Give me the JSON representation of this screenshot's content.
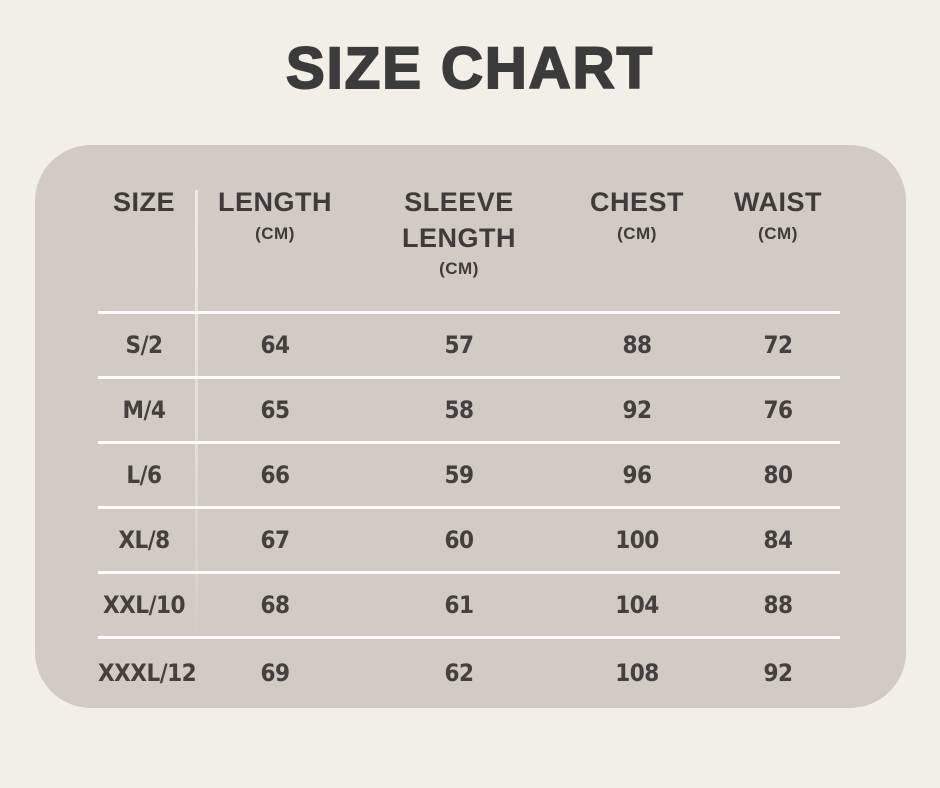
{
  "title": "SIZE CHART",
  "colors": {
    "page_background": "#F2EFE9",
    "card_background": "#D2CBC3",
    "title_text": "#3B3B3B",
    "table_text": "#3E3B39",
    "divider_lines": "#FDFCFA"
  },
  "table": {
    "headers": [
      {
        "label": "SIZE",
        "unit": ""
      },
      {
        "label": "LENGTH",
        "unit": "(CM)"
      },
      {
        "label": "SLEEVE LENGTH",
        "unit": "(CM)"
      },
      {
        "label": "CHEST",
        "unit": "(CM)"
      },
      {
        "label": "WAIST",
        "unit": "(CM)"
      }
    ],
    "rows": [
      {
        "cells": [
          "S/2",
          "64",
          "57",
          "88",
          "72"
        ]
      },
      {
        "cells": [
          "M/4",
          "65",
          "58",
          "92",
          "76"
        ]
      },
      {
        "cells": [
          "L/6",
          "66",
          "59",
          "96",
          "80"
        ]
      },
      {
        "cells": [
          "XL/8",
          "67",
          "60",
          "100",
          "84"
        ]
      },
      {
        "cells": [
          "XXL/10",
          "68",
          "61",
          "104",
          "88"
        ]
      },
      {
        "cells": [
          "XXXL/12",
          "69",
          "62",
          "108",
          "92"
        ]
      }
    ]
  },
  "chart_data": {
    "type": "table",
    "title": "SIZE CHART",
    "columns": [
      "SIZE",
      "LENGTH (CM)",
      "SLEEVE LENGTH (CM)",
      "CHEST (CM)",
      "WAIST (CM)"
    ],
    "rows": [
      [
        "S/2",
        64,
        57,
        88,
        72
      ],
      [
        "M/4",
        65,
        58,
        92,
        76
      ],
      [
        "L/6",
        66,
        59,
        96,
        80
      ],
      [
        "XL/8",
        67,
        60,
        100,
        84
      ],
      [
        "XXL/10",
        68,
        61,
        104,
        88
      ],
      [
        "XXXL/12",
        69,
        62,
        108,
        92
      ]
    ]
  }
}
